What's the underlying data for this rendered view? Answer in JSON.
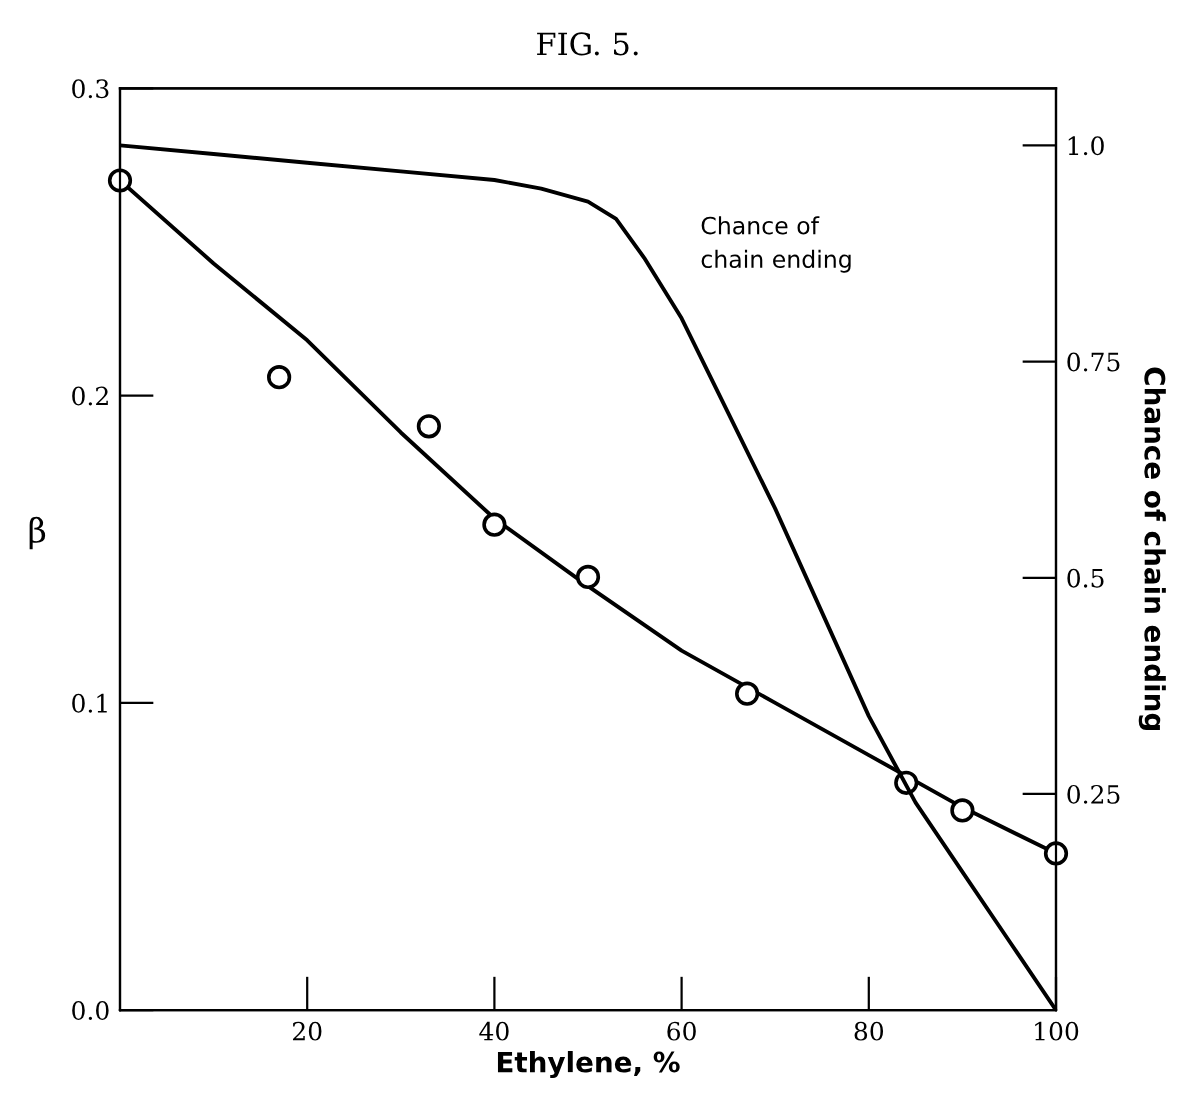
{
  "chart_data": {
    "type": "line",
    "title": "FIG. 5.",
    "xlabel": "Ethylene, %",
    "ylabel": "β",
    "y2label": "Chance of chain ending",
    "xlim": [
      0,
      100
    ],
    "xticks": [
      20,
      40,
      60,
      80,
      100
    ],
    "ylim": [
      0,
      0.3
    ],
    "yticks": [
      {
        "value": 0,
        "label": "0.0"
      },
      0.1,
      0.2,
      0.3
    ],
    "y2lim": [
      0,
      1.066
    ],
    "y2ticks": [
      0.25,
      0.5,
      0.75,
      {
        "value": 1,
        "label": "1.0"
      }
    ],
    "grid": false,
    "series": [
      {
        "type": "scatter",
        "marker": "circle",
        "color": "#000000",
        "x": [
          0,
          17,
          33,
          40,
          50,
          67,
          84,
          90,
          100
        ],
        "values": [
          0.27,
          0.206,
          0.19,
          0.158,
          0.141,
          0.103,
          0.074,
          0.065,
          0.051
        ]
      },
      {
        "marker": "none",
        "color": "#000000",
        "x": [
          0,
          10,
          20,
          30,
          40,
          50,
          60,
          70,
          80,
          90,
          100
        ],
        "values": [
          0.27,
          0.243,
          0.218,
          0.188,
          0.16,
          0.138,
          0.117,
          0.1,
          0.083,
          0.066,
          0.051
        ]
      },
      {
        "axis": "y2",
        "marker": "none",
        "color": "#000000",
        "x": [
          0,
          10,
          20,
          30,
          40,
          45,
          50,
          53,
          56,
          60,
          65,
          70,
          75,
          80,
          85,
          90,
          95,
          100
        ],
        "values": [
          1.0,
          0.99,
          0.98,
          0.97,
          0.96,
          0.95,
          0.935,
          0.915,
          0.87,
          0.8,
          0.69,
          0.58,
          0.46,
          0.34,
          0.24,
          0.16,
          0.08,
          0.0
        ]
      }
    ],
    "annotations": [
      "Chance of\nchain ending"
    ]
  }
}
